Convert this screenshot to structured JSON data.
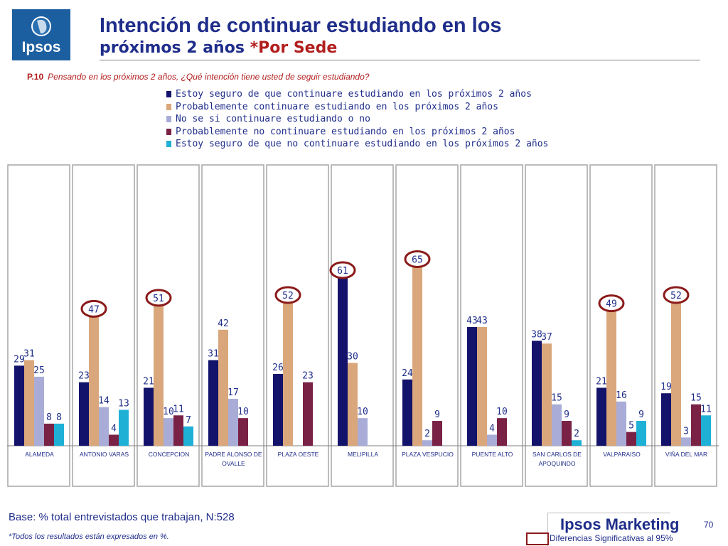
{
  "header": {
    "logo_text": "Ipsos",
    "title_line1": "Intención de continuar estudiando en los",
    "title_line2_main": "próximos 2 años ",
    "title_line2_accent": "*Por Sede"
  },
  "question": {
    "label": "P.10",
    "text": "Pensando en los próximos 2 años, ¿Qué intención tiene usted de seguir estudiando?"
  },
  "chart_data": {
    "type": "bar",
    "categories": [
      [
        "ALAMEDA"
      ],
      [
        "ANTONIO VARAS"
      ],
      [
        "CONCEPCION"
      ],
      [
        "PADRE ALONSO DE",
        "OVALLE"
      ],
      [
        "PLAZA OESTE"
      ],
      [
        "MELIPILLA"
      ],
      [
        "PLAZA VESPUCIO"
      ],
      [
        "PUENTE ALTO"
      ],
      [
        "SAN CARLOS DE",
        "APOQUINDO"
      ],
      [
        "VALPARAISO"
      ],
      [
        "VIÑA DEL MAR"
      ]
    ],
    "series": [
      {
        "name": "Estoy seguro de que continuare estudiando en los próximos 2 años",
        "color": "#14136b",
        "values": [
          29,
          23,
          21,
          31,
          26,
          61,
          24,
          43,
          38,
          21,
          19
        ]
      },
      {
        "name": "Probablemente continuare estudiando en los próximos 2 años",
        "color": "#d9a77b",
        "values": [
          31,
          47,
          51,
          42,
          52,
          30,
          65,
          43,
          37,
          49,
          52
        ]
      },
      {
        "name": "No se si continuare estudiando o no",
        "color": "#a9acd6",
        "values": [
          25,
          14,
          10,
          17,
          null,
          10,
          2,
          4,
          15,
          16,
          3
        ]
      },
      {
        "name": "Probablemente no continuare estudiando en los próximos 2 años",
        "color": "#7a2245",
        "values": [
          8,
          4,
          11,
          10,
          23,
          null,
          9,
          10,
          9,
          5,
          15
        ]
      },
      {
        "name": "Estoy seguro de que no continuare estudiando en los próximos 2 años",
        "color": "#1fb0d6",
        "values": [
          8,
          13,
          7,
          null,
          null,
          null,
          null,
          null,
          2,
          9,
          11
        ]
      }
    ],
    "ylim": [
      0,
      70
    ],
    "significant_markers": [
      {
        "category": "ANTONIO VARAS",
        "series": 1
      },
      {
        "category": "CONCEPCION",
        "series": 1
      },
      {
        "category": "PLAZA OESTE",
        "series": 1
      },
      {
        "category": "MELIPILLA",
        "series": 0
      },
      {
        "category": "PLAZA VESPUCIO",
        "series": 1
      },
      {
        "category": "VALPARAISO",
        "series": 1
      },
      {
        "category": "VIÑA DEL MAR",
        "series": 1
      }
    ],
    "marker_color": "#8b1a1a",
    "label_color": "#1f2d8a"
  },
  "footer": {
    "base_text": "Base: % total entrevistados que trabajan, N:528",
    "footnote": "*Todos los resultados están expresados en %.",
    "brand": "Ipsos Marketing",
    "page_number": "70",
    "significance_label": "Diferencias Significativas al 95%"
  }
}
